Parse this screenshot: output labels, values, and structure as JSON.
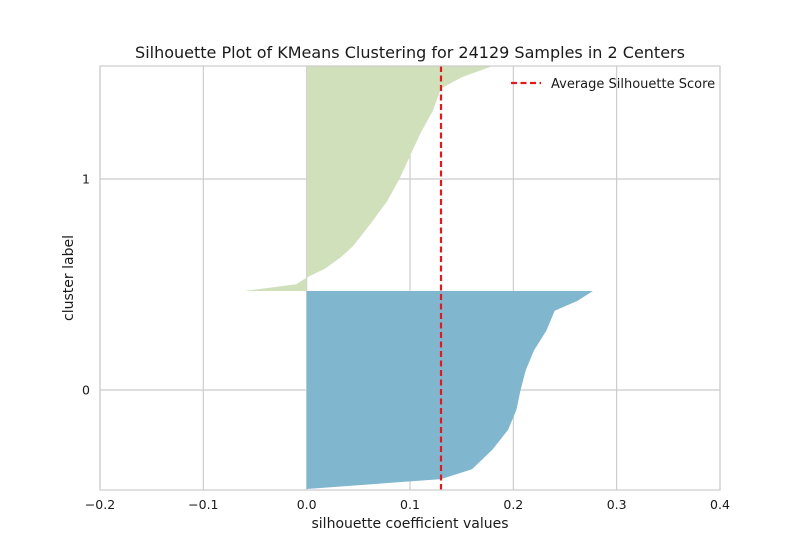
{
  "chart_data": {
    "type": "area",
    "title": "Silhouette Plot of KMeans Clustering for 24129 Samples in 2 Centers",
    "xlabel": "silhouette coefficient values",
    "ylabel": "cluster label",
    "xlim": [
      -0.2,
      0.4
    ],
    "xticks": [
      -0.2,
      -0.1,
      0.0,
      0.1,
      0.2,
      0.3,
      0.4
    ],
    "xtick_labels": [
      "−0.2",
      "−0.1",
      "0.0",
      "0.1",
      "0.2",
      "0.3",
      "0.4"
    ],
    "yticks": [
      "0",
      "1"
    ],
    "grid": true,
    "legend": {
      "position": "upper-right",
      "entries": [
        "Average Silhouette Score"
      ]
    },
    "average_silhouette_score": 0.13,
    "colors": {
      "cluster_0": "#80b6ce",
      "cluster_1": "#cfe0bb",
      "average_line": "#e31a1c",
      "grid": "#cccccc",
      "spine": "#cccccc"
    },
    "clusters": [
      {
        "label": "0",
        "profile_fraction": [
          0.0,
          0.05,
          0.1,
          0.2,
          0.3,
          0.4,
          0.5,
          0.6,
          0.7,
          0.8,
          0.9,
          0.95,
          1.0
        ],
        "sorted_silhouette": [
          0.0,
          0.13,
          0.16,
          0.18,
          0.195,
          0.203,
          0.207,
          0.212,
          0.22,
          0.232,
          0.24,
          0.262,
          0.277
        ]
      },
      {
        "label": "1",
        "profile_fraction": [
          0.0,
          0.03,
          0.06,
          0.1,
          0.15,
          0.2,
          0.3,
          0.4,
          0.5,
          0.6,
          0.7,
          0.8,
          0.9,
          0.95,
          1.0
        ],
        "sorted_silhouette": [
          -0.06,
          -0.01,
          0.0,
          0.018,
          0.033,
          0.045,
          0.062,
          0.078,
          0.09,
          0.1,
          0.11,
          0.122,
          0.13,
          0.15,
          0.18
        ]
      }
    ]
  }
}
